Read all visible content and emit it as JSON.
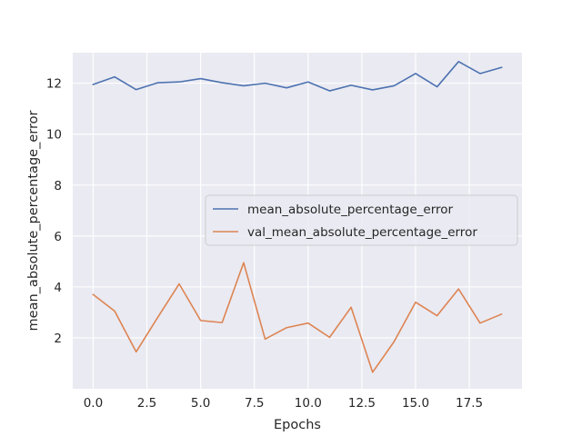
{
  "chart_data": {
    "type": "line",
    "title": "",
    "xlabel": "Epochs",
    "ylabel": "mean_absolute_percentage_error",
    "xlim": [
      -0.95,
      19.95
    ],
    "ylim": [
      0.0,
      13.2
    ],
    "xticks": [
      0,
      2.5,
      5,
      7.5,
      10,
      12.5,
      15,
      17.5
    ],
    "xtick_labels": [
      "0.0",
      "2.5",
      "5.0",
      "7.5",
      "10.0",
      "12.5",
      "15.0",
      "17.5"
    ],
    "yticks": [
      2,
      4,
      6,
      8,
      10,
      12
    ],
    "ytick_labels": [
      "2",
      "4",
      "6",
      "8",
      "10",
      "12"
    ],
    "grid": true,
    "background": "#eaeaf2",
    "grid_color": "#ffffff",
    "legend_position": "center-right",
    "x": [
      0,
      1,
      2,
      3,
      4,
      5,
      6,
      7,
      8,
      9,
      10,
      11,
      12,
      13,
      14,
      15,
      16,
      17,
      18,
      19
    ],
    "series": [
      {
        "name": "mean_absolute_percentage_error",
        "color": "#4c72b0",
        "values": [
          11.95,
          12.25,
          11.75,
          12.02,
          12.05,
          12.18,
          12.02,
          11.9,
          12.0,
          11.82,
          12.05,
          11.7,
          11.92,
          11.74,
          11.9,
          12.38,
          11.86,
          12.85,
          12.38,
          12.62
        ]
      },
      {
        "name": "val_mean_absolute_percentage_error",
        "color": "#dd8452",
        "values": [
          3.7,
          3.05,
          1.45,
          2.8,
          4.12,
          2.68,
          2.6,
          4.95,
          1.95,
          2.4,
          2.58,
          2.02,
          3.2,
          0.65,
          1.85,
          3.4,
          2.87,
          3.92,
          2.58,
          2.93
        ]
      }
    ]
  }
}
